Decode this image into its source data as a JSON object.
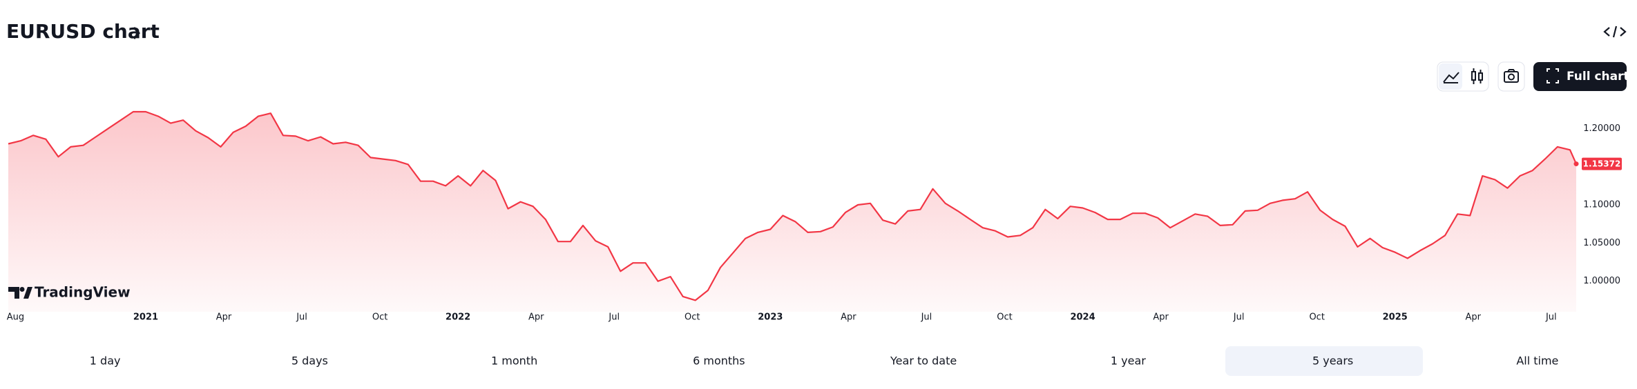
{
  "header": {
    "title": "EURUSD chart"
  },
  "toolbar": {
    "full_chart": "Full chart"
  },
  "brand": "TradingView",
  "chart_data": {
    "type": "line",
    "color": "#f23645",
    "x": [
      2020.56,
      2020.6,
      2020.64,
      2020.68,
      2020.72,
      2020.76,
      2020.8,
      2020.84,
      2020.88,
      2020.92,
      2020.96,
      2021.0,
      2021.04,
      2021.08,
      2021.12,
      2021.16,
      2021.2,
      2021.24,
      2021.28,
      2021.32,
      2021.36,
      2021.4,
      2021.44,
      2021.48,
      2021.52,
      2021.56,
      2021.6,
      2021.64,
      2021.68,
      2021.72,
      2021.76,
      2021.8,
      2021.84,
      2021.88,
      2021.92,
      2021.96,
      2022.0,
      2022.04,
      2022.08,
      2022.12,
      2022.16,
      2022.2,
      2022.24,
      2022.28,
      2022.32,
      2022.36,
      2022.4,
      2022.44,
      2022.48,
      2022.52,
      2022.56,
      2022.6,
      2022.64,
      2022.68,
      2022.72,
      2022.76,
      2022.8,
      2022.84,
      2022.88,
      2022.92,
      2022.96,
      2023.0,
      2023.04,
      2023.08,
      2023.12,
      2023.16,
      2023.2,
      2023.24,
      2023.28,
      2023.32,
      2023.36,
      2023.4,
      2023.44,
      2023.48,
      2023.52,
      2023.56,
      2023.6,
      2023.64,
      2023.68,
      2023.72,
      2023.76,
      2023.8,
      2023.84,
      2023.88,
      2023.92,
      2023.96,
      2024.0,
      2024.04,
      2024.08,
      2024.12,
      2024.16,
      2024.2,
      2024.24,
      2024.28,
      2024.32,
      2024.36,
      2024.4,
      2024.44,
      2024.48,
      2024.52,
      2024.56,
      2024.6,
      2024.64,
      2024.68,
      2024.72,
      2024.76,
      2024.8,
      2024.84,
      2024.88,
      2024.92,
      2024.96,
      2025.0,
      2025.04,
      2025.08,
      2025.12,
      2025.16,
      2025.2,
      2025.24,
      2025.28,
      2025.32,
      2025.36,
      2025.4,
      2025.44,
      2025.48,
      2025.52,
      2025.56,
      2025.58
    ],
    "values": [
      1.18,
      1.184,
      1.191,
      1.186,
      1.163,
      1.176,
      1.178,
      1.189,
      1.2,
      1.211,
      1.222,
      1.222,
      1.216,
      1.207,
      1.211,
      1.197,
      1.188,
      1.176,
      1.195,
      1.203,
      1.216,
      1.22,
      1.191,
      1.19,
      1.184,
      1.189,
      1.18,
      1.182,
      1.178,
      1.162,
      1.16,
      1.158,
      1.153,
      1.131,
      1.131,
      1.125,
      1.138,
      1.125,
      1.145,
      1.132,
      1.095,
      1.104,
      1.098,
      1.081,
      1.052,
      1.052,
      1.073,
      1.053,
      1.045,
      1.013,
      1.024,
      1.024,
      1.0,
      1.006,
      0.98,
      0.975,
      0.988,
      1.018,
      1.037,
      1.056,
      1.064,
      1.068,
      1.086,
      1.078,
      1.064,
      1.065,
      1.071,
      1.09,
      1.1,
      1.102,
      1.08,
      1.075,
      1.092,
      1.094,
      1.121,
      1.102,
      1.092,
      1.081,
      1.07,
      1.066,
      1.058,
      1.06,
      1.07,
      1.094,
      1.082,
      1.098,
      1.096,
      1.09,
      1.081,
      1.081,
      1.089,
      1.089,
      1.083,
      1.07,
      1.079,
      1.088,
      1.085,
      1.073,
      1.074,
      1.092,
      1.093,
      1.102,
      1.106,
      1.108,
      1.117,
      1.093,
      1.081,
      1.072,
      1.045,
      1.056,
      1.044,
      1.038,
      1.03,
      1.04,
      1.049,
      1.06,
      1.088,
      1.086,
      1.138,
      1.133,
      1.122,
      1.138,
      1.145,
      1.16,
      1.176,
      1.172,
      1.15372
    ],
    "xlim": [
      2020.56,
      2025.58
    ],
    "ylim": [
      0.96,
      1.25
    ],
    "yticks": [
      {
        "value": 1.0,
        "label": "1.00000"
      },
      {
        "value": 1.05,
        "label": "1.05000"
      },
      {
        "value": 1.1,
        "label": "1.10000"
      },
      {
        "value": 1.2,
        "label": "1.20000"
      }
    ],
    "xticks": [
      {
        "value": 2020.583,
        "label": "Aug"
      },
      2021,
      {
        "value": 2021.25,
        "label": "Apr"
      },
      {
        "value": 2021.5,
        "label": "Jul"
      },
      {
        "value": 2021.75,
        "label": "Oct"
      },
      2022,
      {
        "value": 2022.25,
        "label": "Apr"
      },
      {
        "value": 2022.5,
        "label": "Jul"
      },
      {
        "value": 2022.75,
        "label": "Oct"
      },
      2023,
      {
        "value": 2023.25,
        "label": "Apr"
      },
      {
        "value": 2023.5,
        "label": "Jul"
      },
      {
        "value": 2023.75,
        "label": "Oct"
      },
      2024,
      {
        "value": 2024.25,
        "label": "Apr"
      },
      {
        "value": 2024.5,
        "label": "Jul"
      },
      {
        "value": 2024.75,
        "label": "Oct"
      },
      2025,
      {
        "value": 2025.25,
        "label": "Apr"
      },
      {
        "value": 2025.5,
        "label": "Jul"
      }
    ]
  },
  "ranges": [
    "1 day",
    "5 days",
    "1 month",
    "6 months",
    "Year to date",
    "1 year",
    "5 years",
    "All time"
  ],
  "selected_range": 6
}
